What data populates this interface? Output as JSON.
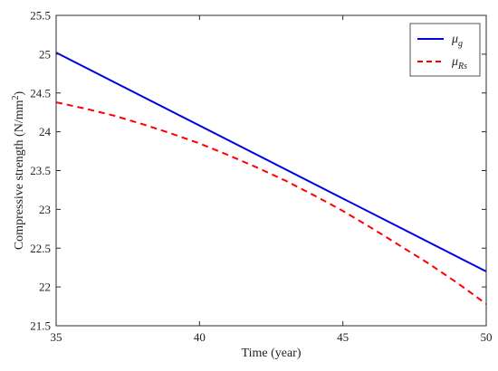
{
  "chart_data": {
    "type": "line",
    "title": "",
    "xlabel": "Time (year)",
    "ylabel": "Compressive strength (N/mm",
    "ylabel_sup": "2",
    "ylabel_end": ")",
    "xlim": [
      35,
      50
    ],
    "ylim": [
      21.5,
      25.5
    ],
    "xticks": [
      "35",
      "40",
      "45",
      "50"
    ],
    "yticks": [
      "21.5",
      "22",
      "22.5",
      "23",
      "23.5",
      "24",
      "24.5",
      "25",
      "25.5"
    ],
    "grid": false,
    "legend_position": "top-right",
    "series": [
      {
        "name": "μ",
        "name_sub": "g",
        "color": "#0000e6",
        "style": "solid",
        "x": [
          35,
          50
        ],
        "y": [
          25.02,
          22.2
        ]
      },
      {
        "name": "μ",
        "name_sub": "Rs",
        "color": "#ff0000",
        "style": "dashed",
        "x": [
          35,
          36,
          37,
          38,
          39,
          40,
          41,
          42,
          43,
          44,
          45,
          46,
          47,
          48,
          49,
          50
        ],
        "y": [
          24.38,
          24.3,
          24.21,
          24.1,
          23.98,
          23.85,
          23.7,
          23.54,
          23.37,
          23.18,
          22.98,
          22.76,
          22.53,
          22.3,
          22.05,
          21.78
        ]
      }
    ]
  }
}
